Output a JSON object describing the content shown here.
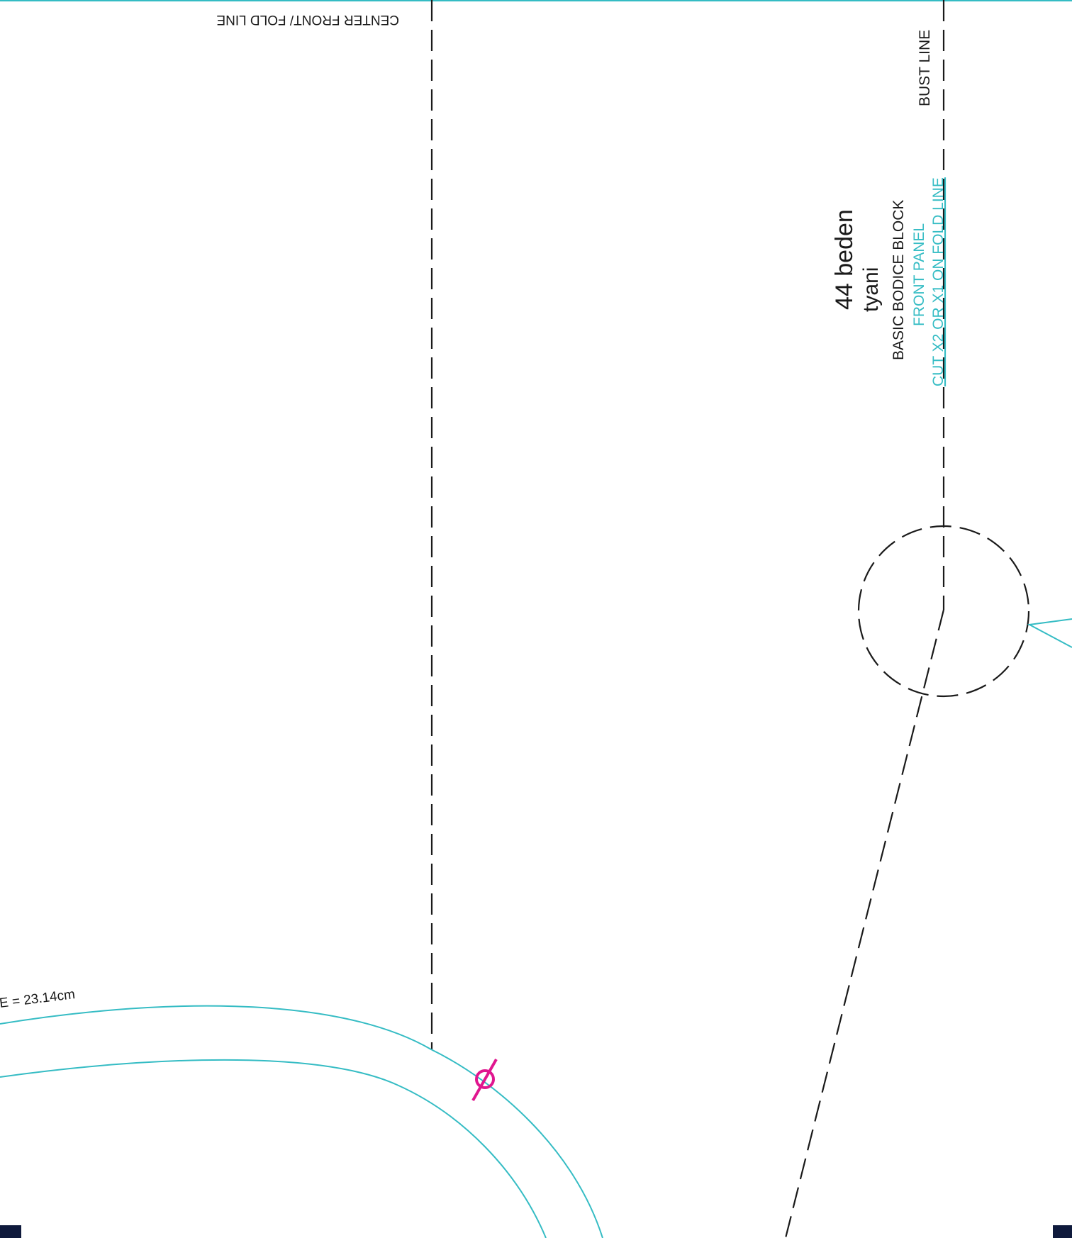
{
  "pattern": {
    "size": "44 beden",
    "designer": "tyani",
    "block_name": "BASIC BODICE BLOCK",
    "panel": "FRONT PANEL",
    "cut_instruction": "CUT X2 OR X1 ON FOLD LINE"
  },
  "labels": {
    "center_front": "CENTER FRONT/ FOLD LINE",
    "bust_line": "BUST LINE",
    "neckline_measure": "E = 23.14cm"
  },
  "colors": {
    "seam_line": "#35bcc4",
    "guide_line": "#1a1a1a",
    "notch_mark": "#e0168f",
    "registration_block": "#0f1a3c",
    "cut_text": "#35bcc4"
  }
}
